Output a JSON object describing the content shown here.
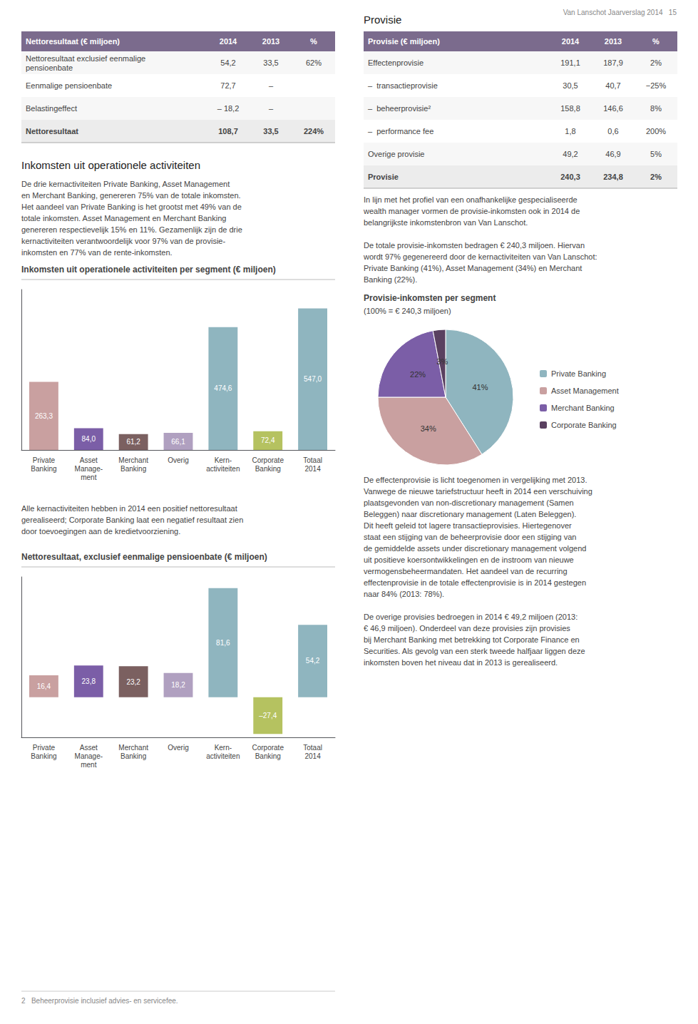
{
  "chart_data": [
    {
      "type": "text",
      "annotations": [
        "Van Lanschot Jaarverslag 2014   15"
      ]
    },
    {
      "type": "table",
      "color": "#7b6b8d",
      "columns": [
        "Nettoresultaat (€ miljoen)",
        "2014",
        "2013",
        "%"
      ],
      "rows": [
        [
          "Nettoresultaat exclusief eenmalige\npensioenbate",
          "54,2",
          "33,5",
          "62%"
        ],
        [
          "Eenmalige pensioenbate",
          "72,7",
          "–",
          null
        ],
        [
          "Belastingeffect",
          "– 18,2",
          "–",
          null
        ],
        [
          "Nettoresultaat",
          "108,7",
          "33,5",
          "224%"
        ]
      ]
    },
    {
      "type": "text",
      "title": "Inkomsten uit operationele activiteiten",
      "annotations": [
        "De drie kernactiviteiten Private Banking, Asset Management\nen Merchant Banking, genereren 75% van de totale inkomsten.\nHet aandeel van Private Banking is het grootst met 49% van de\ntotale inkomsten. Asset Management en Merchant Banking\ngenereren respectievelijk 15% en 11%. Gezamenlijk zijn de drie\nkernactiviteiten verantwoordelijk voor 97% van de provisie-\ninkomsten en 77% van de rente-inkomsten."
      ]
    },
    {
      "type": "bar",
      "title": "Inkomsten uit operationele activiteiten per segment (€ miljoen)",
      "categories": [
        "Private\nBanking",
        "Asset\nManage-\nment",
        "Merchant\nBanking",
        "Overig",
        "Kern-\nactiviteiten",
        "Corporate\nBanking",
        "Totaal\n2014"
      ],
      "values": [
        263.3,
        84.0,
        61.2,
        66.1,
        474.6,
        72.4,
        547.0
      ],
      "value_labels": [
        "263,3",
        "84,0",
        "61,2",
        "66,1",
        "474,6",
        "72,4",
        "547,0"
      ],
      "colors": [
        "#c9a0a0",
        "#7b5ea7",
        "#7b6060",
        "#b0a0c0",
        "#8fb5bf",
        "#b5c260",
        "#8fb5bf"
      ],
      "data_labels": true,
      "ylim": [
        0,
        620
      ],
      "tick_labels": "x",
      "grid": false
    },
    {
      "type": "text",
      "annotations": [
        "Alle kernactiviteiten hebben in 2014 een positief nettoresultaat\ngerealiseerd; Corporate Banking laat een negatief resultaat zien\ndoor toevoegingen aan de kredietvoorziening."
      ]
    },
    {
      "type": "bar",
      "title": "Nettoresultaat, exclusief eenmalige pensioenbate (€ miljoen)",
      "categories": [
        "Private\nBanking",
        "Asset\nManage-\nment",
        "Merchant\nBanking",
        "Overig",
        "Kern-\nactiviteiten",
        "Corporate\nBanking",
        "Totaal\n2014"
      ],
      "values": [
        16.4,
        23.8,
        23.2,
        18.2,
        81.6,
        -27.4,
        54.2
      ],
      "value_labels": [
        "16,4",
        "23,8",
        "23,2",
        "18,2",
        "81,6",
        "–27,4",
        "54,2"
      ],
      "colors": [
        "#c9a0a0",
        "#7b5ea7",
        "#7b6060",
        "#b0a0c0",
        "#8fb5bf",
        "#b5c260",
        "#8fb5bf"
      ],
      "data_labels": true,
      "ylim": [
        -30,
        90
      ],
      "tick_labels": "x",
      "grid": false
    },
    {
      "type": "text",
      "annotations": [
        "2   Beheerprovisie inclusief advies- en servicefee."
      ]
    },
    {
      "type": "table",
      "title": "Provisie",
      "color": "#7b6b8d",
      "columns": [
        "Provisie (€ miljoen)",
        "2014",
        "2013",
        "%"
      ],
      "rows": [
        [
          "Effectenprovisie",
          "191,1",
          "187,9",
          "2%"
        ],
        [
          "–  transactieprovisie",
          "30,5",
          "40,7",
          "−25%"
        ],
        [
          "–  beheerprovisie²",
          "158,8",
          "146,6",
          "8%"
        ],
        [
          "–  performance fee",
          "1,8",
          "0,6",
          "200%"
        ],
        [
          "Overige provisie",
          "49,2",
          "46,9",
          "5%"
        ],
        [
          "Provisie",
          "240,3",
          "234,8",
          "2%"
        ]
      ]
    },
    {
      "type": "text",
      "annotations": [
        "In lijn met het profiel van een onafhankelijke gespecialiseerde\nwealth manager vormen de provisie-inkomsten ook in 2014 de\nbelangrijkste inkomstenbron van Van Lanschot.",
        "De totale provisie-inkomsten bedragen € 240,3 miljoen. Hiervan\nwordt 97% gegenereerd door de kernactiviteiten van Van Lanschot:\nPrivate Banking (41%), Asset Management (34%) en Merchant\nBanking (22%)."
      ]
    },
    {
      "type": "pie",
      "title": "Provisie-inkomsten per segment",
      "subtitle": "(100% = € 240,3 miljoen)",
      "categories": [
        "Private Banking",
        "Asset Management",
        "Merchant Banking",
        "Corporate Banking"
      ],
      "values": [
        41,
        34,
        22,
        3
      ],
      "value_labels": [
        "41%",
        "34%",
        "22%",
        "3%"
      ],
      "colors": [
        "#8fb5bf",
        "#c9a0a0",
        "#7b5ea7",
        "#5a4060"
      ],
      "data_labels": true,
      "legend": "right"
    },
    {
      "type": "text",
      "annotations": [
        "De effectenprovisie is licht toegenomen in vergelijking met 2013.\nVanwege de nieuwe tariefstructuur heeft in 2014 een verschuiving\nplaatsgevonden van non-discretionary management (Samen\nBeleggen) naar discretionary management (Laten Beleggen).\nDit heeft geleid tot lagere transactieprovisies. Hiertegenover\nstaat een stijging van de beheerprovisie door een stijging van\nde gemiddelde assets under discretionary management volgend\nuit positieve koersontwikkelingen en de instroom van nieuwe\nvermogensbeheermandaten. Het aandeel van de recurring\neffectenprovisie in de totale effectenprovisie is in 2014 gestegen\nnaar 84% (2013: 78%).",
        "De overige provisies bedroegen in 2014 € 49,2 miljoen (2013:\n€ 46,9 miljoen). Onderdeel van deze provisies zijn provisies\nbij Merchant Banking met betrekking tot Corporate Finance en\nSecurities. Als gevolg van een sterk tweede halfjaar liggen deze\ninkomsten boven het niveau dat in 2013 is gerealiseerd."
      ]
    }
  ]
}
